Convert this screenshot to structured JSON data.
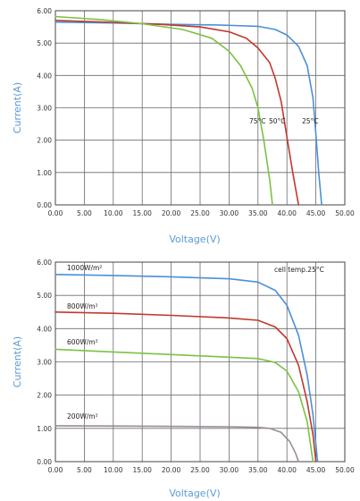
{
  "chart_data": [
    {
      "type": "line",
      "title": "",
      "xlabel": "Voltage(V)",
      "ylabel": "Current(A)",
      "xlim": [
        0,
        50
      ],
      "ylim": [
        0,
        6
      ],
      "x_ticks": [
        "0.00",
        "5.00",
        "10.00",
        "15.00",
        "20.00",
        "25.00",
        "30.00",
        "35.00",
        "40.00",
        "45.00",
        "50.00"
      ],
      "y_ticks": [
        "0.00",
        "1.00",
        "2.00",
        "3.00",
        "4.00",
        "5.00",
        "6.00"
      ],
      "grid": true,
      "series": [
        {
          "name": "25°C",
          "color": "#4a90d9",
          "points": [
            [
              0,
              5.65
            ],
            [
              10,
              5.62
            ],
            [
              20,
              5.58
            ],
            [
              28,
              5.56
            ],
            [
              35,
              5.52
            ],
            [
              38,
              5.42
            ],
            [
              40,
              5.25
            ],
            [
              42,
              4.9
            ],
            [
              43.5,
              4.3
            ],
            [
              44.5,
              3.3
            ],
            [
              45,
              2.2
            ],
            [
              45.5,
              1.0
            ],
            [
              46,
              0
            ]
          ]
        },
        {
          "name": "50°C",
          "color": "#c0392b",
          "points": [
            [
              0,
              5.7
            ],
            [
              10,
              5.64
            ],
            [
              18,
              5.58
            ],
            [
              25,
              5.5
            ],
            [
              30,
              5.35
            ],
            [
              33,
              5.15
            ],
            [
              35,
              4.85
            ],
            [
              37,
              4.4
            ],
            [
              38,
              3.9
            ],
            [
              39,
              3.2
            ],
            [
              40,
              2.1
            ],
            [
              41,
              1.0
            ],
            [
              42,
              0
            ]
          ]
        },
        {
          "name": "75°C",
          "color": "#7cc242",
          "points": [
            [
              0,
              5.82
            ],
            [
              8,
              5.72
            ],
            [
              15,
              5.6
            ],
            [
              22,
              5.42
            ],
            [
              27,
              5.15
            ],
            [
              30,
              4.75
            ],
            [
              32,
              4.3
            ],
            [
              34,
              3.6
            ],
            [
              35,
              3.0
            ],
            [
              36,
              2.0
            ],
            [
              37,
              0.8
            ],
            [
              37.5,
              0
            ]
          ]
        }
      ],
      "annotations": [
        "75°C",
        "50°C",
        "25°C"
      ]
    },
    {
      "type": "line",
      "title": "",
      "xlabel": "Voltage(V)",
      "ylabel": "Current(A)",
      "xlim": [
        0,
        50
      ],
      "ylim": [
        0,
        6
      ],
      "x_ticks": [
        "0.00",
        "5.00",
        "10.00",
        "15.00",
        "20.00",
        "25.00",
        "30.00",
        "35.00",
        "40.00",
        "45.00",
        "50.00"
      ],
      "y_ticks": [
        "0.00",
        "1.00",
        "2.00",
        "3.00",
        "4.00",
        "5.00",
        "6.00"
      ],
      "grid": true,
      "series": [
        {
          "name": "1000W/m²",
          "color": "#4a90d9",
          "points": [
            [
              0,
              5.63
            ],
            [
              10,
              5.6
            ],
            [
              20,
              5.56
            ],
            [
              30,
              5.5
            ],
            [
              35,
              5.4
            ],
            [
              38,
              5.15
            ],
            [
              40,
              4.7
            ],
            [
              42,
              3.8
            ],
            [
              43.5,
              2.6
            ],
            [
              44.5,
              1.4
            ],
            [
              45.3,
              0
            ]
          ]
        },
        {
          "name": "800W/m²",
          "color": "#c0392b",
          "points": [
            [
              0,
              4.5
            ],
            [
              10,
              4.46
            ],
            [
              20,
              4.4
            ],
            [
              30,
              4.32
            ],
            [
              35,
              4.25
            ],
            [
              38,
              4.05
            ],
            [
              40,
              3.7
            ],
            [
              42,
              2.9
            ],
            [
              43.5,
              1.8
            ],
            [
              44.5,
              0.8
            ],
            [
              45,
              0
            ]
          ]
        },
        {
          "name": "600W/m²",
          "color": "#7cc242",
          "points": [
            [
              0,
              3.38
            ],
            [
              10,
              3.3
            ],
            [
              20,
              3.22
            ],
            [
              30,
              3.14
            ],
            [
              35,
              3.1
            ],
            [
              38,
              2.98
            ],
            [
              40,
              2.72
            ],
            [
              42,
              2.1
            ],
            [
              43.5,
              1.2
            ],
            [
              44.5,
              0
            ]
          ]
        },
        {
          "name": "200W/m²",
          "color": "#9b8a9b",
          "points": [
            [
              0,
              1.08
            ],
            [
              10,
              1.07
            ],
            [
              20,
              1.06
            ],
            [
              30,
              1.05
            ],
            [
              35,
              1.03
            ],
            [
              37,
              1.0
            ],
            [
              39,
              0.88
            ],
            [
              40.5,
              0.6
            ],
            [
              41.5,
              0.25
            ],
            [
              42,
              0
            ]
          ]
        }
      ],
      "annotations": [
        "1000W/m²",
        "800W/m²",
        "600W/m²",
        "200W/m²",
        "cell temp.25°C"
      ]
    }
  ]
}
